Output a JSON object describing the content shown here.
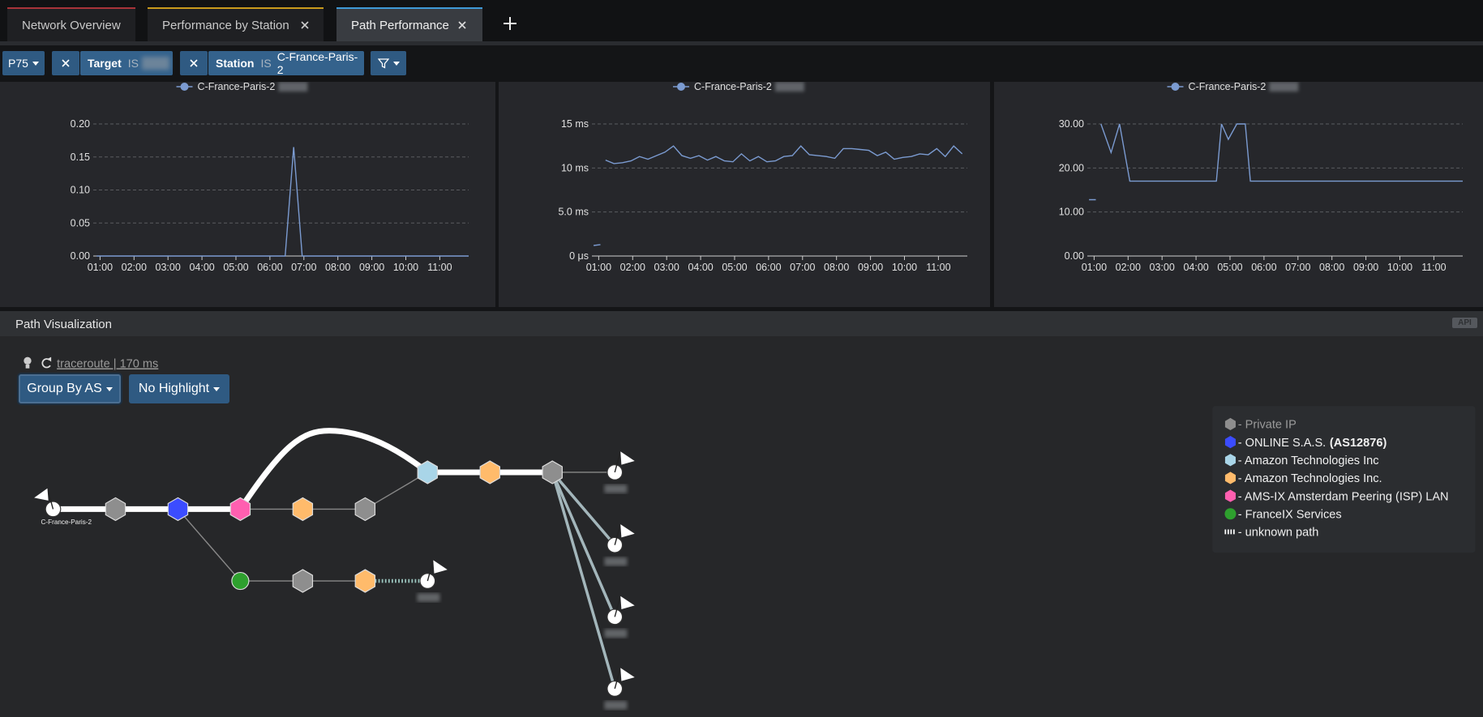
{
  "tabs": [
    "Network Overview",
    "Performance by Station",
    "Path Performance"
  ],
  "filters": {
    "percentile": "P75",
    "target": {
      "field": "Target",
      "operator": "IS"
    },
    "station": {
      "field": "Station",
      "operator": "IS",
      "value": "C-France-Paris-2"
    }
  },
  "charts": [
    {
      "type": "line",
      "series": [
        {
          "name": "C-France-Paris-2",
          "color": "#7b9bd1",
          "values": [
            0,
            0,
            0.165,
            0,
            0
          ]
        }
      ],
      "x": [
        0.9,
        6.45,
        6.7,
        6.95,
        11.85
      ],
      "xlim": [
        0.8,
        11.85
      ],
      "xticks": [
        {
          "value": 1,
          "label": "01:00"
        },
        {
          "value": 2,
          "label": "02:00"
        },
        {
          "value": 3,
          "label": "03:00"
        },
        {
          "value": 4,
          "label": "04:00"
        },
        {
          "value": 5,
          "label": "05:00"
        },
        {
          "value": 6,
          "label": "06:00"
        },
        {
          "value": 7,
          "label": "07:00"
        },
        {
          "value": 8,
          "label": "08:00"
        },
        {
          "value": 9,
          "label": "09:00"
        },
        {
          "value": 10,
          "label": "10:00"
        },
        {
          "value": 11,
          "label": "11:00"
        }
      ],
      "ylim": [
        0,
        0.2
      ],
      "yticks": [
        {
          "value": 0,
          "label": "0.00"
        },
        {
          "value": 0.05,
          "label": "0.05"
        },
        {
          "value": 0.1,
          "label": "0.10"
        },
        {
          "value": 0.15,
          "label": "0.15"
        },
        {
          "value": 0.2,
          "label": "0.20"
        }
      ],
      "grid": true
    },
    {
      "type": "line",
      "series": [
        {
          "name": "C-France-Paris-2",
          "color": "#7b9bd1",
          "values": [
            1.2,
            1.3,
            null,
            10.9,
            10.5,
            10.6,
            10.8,
            11.3,
            11.0,
            11.4,
            11.8,
            12.5,
            11.4,
            11.1,
            11.4,
            10.9,
            11.3,
            10.8,
            10.7,
            11.6,
            10.8,
            11.3,
            10.7,
            10.8,
            11.3,
            11.4,
            12.5,
            11.5,
            11.4,
            11.3,
            11.1,
            12.2,
            12.2,
            12.1,
            12.0,
            11.4,
            11.8,
            11.0,
            11.2,
            11.3,
            11.6,
            11.5,
            12.2,
            11.3,
            12.5,
            11.6
          ]
        }
      ],
      "x": [
        0.85,
        1.05,
        1.1,
        1.2,
        1.45,
        1.7,
        1.95,
        2.2,
        2.45,
        2.7,
        2.95,
        3.2,
        3.45,
        3.7,
        3.95,
        4.2,
        4.45,
        4.7,
        4.95,
        5.2,
        5.45,
        5.7,
        5.95,
        6.2,
        6.45,
        6.7,
        6.95,
        7.2,
        7.45,
        7.7,
        7.95,
        8.2,
        8.45,
        8.7,
        8.95,
        9.2,
        9.45,
        9.7,
        9.95,
        10.2,
        10.45,
        10.7,
        10.95,
        11.2,
        11.45,
        11.7
      ],
      "xlim": [
        0.8,
        11.85
      ],
      "xticks": [
        {
          "value": 1,
          "label": "01:00"
        },
        {
          "value": 2,
          "label": "02:00"
        },
        {
          "value": 3,
          "label": "03:00"
        },
        {
          "value": 4,
          "label": "04:00"
        },
        {
          "value": 5,
          "label": "05:00"
        },
        {
          "value": 6,
          "label": "06:00"
        },
        {
          "value": 7,
          "label": "07:00"
        },
        {
          "value": 8,
          "label": "08:00"
        },
        {
          "value": 9,
          "label": "09:00"
        },
        {
          "value": 10,
          "label": "10:00"
        },
        {
          "value": 11,
          "label": "11:00"
        }
      ],
      "ylim": [
        0,
        15
      ],
      "yticks": [
        {
          "value": 0,
          "label": "0 μs"
        },
        {
          "value": 5,
          "label": "5.0 ms"
        },
        {
          "value": 10,
          "label": "10 ms"
        },
        {
          "value": 15,
          "label": "15 ms"
        }
      ],
      "grid": true
    },
    {
      "type": "line",
      "series": [
        {
          "name": "C-France-Paris-2",
          "color": "#7b9bd1",
          "values": [
            12.8,
            12.8,
            null,
            30,
            23.5,
            30,
            17,
            17,
            30,
            26.5,
            30,
            30,
            17,
            17
          ]
        }
      ],
      "x": [
        0.85,
        1.05,
        1.1,
        1.2,
        1.5,
        1.75,
        2.05,
        4.6,
        4.75,
        4.95,
        5.2,
        5.45,
        5.6,
        11.85
      ],
      "xlim": [
        0.8,
        11.85
      ],
      "xticks": [
        {
          "value": 1,
          "label": "01:00"
        },
        {
          "value": 2,
          "label": "02:00"
        },
        {
          "value": 3,
          "label": "03:00"
        },
        {
          "value": 4,
          "label": "04:00"
        },
        {
          "value": 5,
          "label": "05:00"
        },
        {
          "value": 6,
          "label": "06:00"
        },
        {
          "value": 7,
          "label": "07:00"
        },
        {
          "value": 8,
          "label": "08:00"
        },
        {
          "value": 9,
          "label": "09:00"
        },
        {
          "value": 10,
          "label": "10:00"
        },
        {
          "value": 11,
          "label": "11:00"
        }
      ],
      "ylim": [
        0,
        30
      ],
      "yticks": [
        {
          "value": 0,
          "label": "0.00"
        },
        {
          "value": 10,
          "label": "10.00"
        },
        {
          "value": 20,
          "label": "20.00"
        },
        {
          "value": 30,
          "label": "30.00"
        }
      ],
      "grid": true
    }
  ],
  "path_visualization": {
    "title": "Path Visualization",
    "badge": "API",
    "traceroute": "traceroute | 170 ms",
    "group_by": "Group By AS",
    "highlight": "No Highlight",
    "source_label": "C-France-Paris-2",
    "legend": [
      {
        "label": "- Private IP",
        "color": "#8e8e8e"
      },
      {
        "label": "- ONLINE S.A.S.",
        "suffix": "(AS12876)",
        "color": "#3b4cff"
      },
      {
        "label": "- Amazon Technologies Inc",
        "color": "#a9d5e8"
      },
      {
        "label": "- Amazon Technologies Inc.",
        "color": "#ffbb6b"
      },
      {
        "label": "- AMS-IX Amsterdam Peering (ISP) LAN",
        "color": "#ff5fb0"
      },
      {
        "label": "- FranceIX Services",
        "color": "#2ea02e"
      },
      {
        "label": "- unknown path"
      }
    ]
  }
}
